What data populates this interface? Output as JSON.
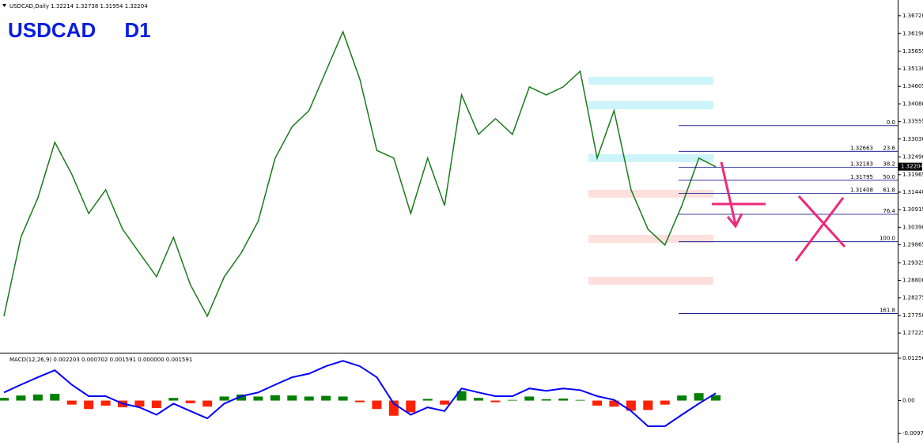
{
  "header": "USDCAD,Daily 1.32214 1.32738 1.31954 1.32204",
  "chart_data": [
    {
      "type": "line",
      "title": "USDCAD     D1",
      "color": "#1a7a1a",
      "values": [
        1.2773,
        1.3009,
        1.3127,
        1.3293,
        1.3198,
        1.308,
        1.3151,
        1.3033,
        1.2962,
        1.2891,
        1.3009,
        1.2867,
        1.2773,
        1.2891,
        1.2962,
        1.3057,
        1.3246,
        1.334,
        1.3388,
        1.3506,
        1.3624,
        1.3482,
        1.3269,
        1.3246,
        1.308,
        1.3246,
        1.3104,
        1.3435,
        1.3317,
        1.3364,
        1.3317,
        1.3459,
        1.3435,
        1.3459,
        1.3506,
        1.3246,
        1.3388,
        1.3151,
        1.3033,
        1.2986,
        1.3104,
        1.3246,
        1.322
      ],
      "ylim": [
        1.2666,
        1.3719
      ],
      "yticks": [
        {
          "value": 1.3672,
          "label": "1.36720"
        },
        {
          "value": 1.3619,
          "label": "1.36190"
        },
        1.35655,
        {
          "value": 1.3513,
          "label": "1.35130"
        },
        1.34605,
        {
          "value": 1.3408,
          "label": "1.34080"
        },
        1.33555,
        {
          "value": 1.3303,
          "label": "1.33030"
        },
        {
          "value": 1.3249,
          "label": "1.32490"
        },
        1.31965,
        {
          "value": 1.3144,
          "label": "1.31440"
        },
        1.30915,
        {
          "value": 1.3039,
          "label": "1.30390"
        },
        1.29865,
        1.29325,
        {
          "value": 1.288,
          "label": "1.28800"
        },
        1.28275,
        {
          "value": 1.2775,
          "label": "1.27750"
        },
        1.27225
      ],
      "last_price": 1.32204,
      "fibonacci": {
        "color": "#00008b",
        "levels": [
          {
            "ratio": {
              "value": 0,
              "label": "0.0"
            },
            "price": 1.33432
          },
          {
            "ratio": 23.6,
            "price": 1.32663,
            "price_label": "1.32663"
          },
          {
            "ratio": 38.2,
            "price": 1.32183,
            "price_label": "1.32183"
          },
          {
            "ratio": {
              "value": 50,
              "label": "50.0"
            },
            "price": 1.31795,
            "price_label": "1.31795"
          },
          {
            "ratio": 61.8,
            "price": 1.31408,
            "price_label": "1.31408"
          },
          {
            "ratio": 76.4,
            "price": 1.30777
          },
          {
            "ratio": {
              "value": 100,
              "label": "100.0"
            },
            "price": 1.29957
          },
          {
            "ratio": 161.8,
            "price": 1.27809
          }
        ]
      }
    },
    {
      "type": "macd",
      "title": "MACD(12,26,9) 0.002203 0.000702 0.001591 0.000000 0.001591",
      "macd": [
        0.0024,
        0.0047,
        0.0069,
        0.009,
        0.0047,
        0.0013,
        0.0013,
        -0.0009,
        -0.002,
        -0.0042,
        -0.0009,
        -0.0031,
        -0.0053,
        -0.0009,
        0.0013,
        0.0024,
        0.0047,
        0.0069,
        0.008,
        0.0102,
        0.0118,
        0.0102,
        0.0069,
        -0.0009,
        -0.0042,
        -0.002,
        -0.0031,
        0.0036,
        0.0024,
        0.0013,
        0.0013,
        0.0036,
        0.0029,
        0.0036,
        0.0031,
        0.0013,
        0.0002,
        -0.0031,
        -0.0076,
        -0.0076,
        -0.0042,
        -0.0009,
        0.0022
      ],
      "histogram": [
        0.0008,
        0.0015,
        0.0018,
        0.002,
        -0.0012,
        -0.0025,
        -0.0015,
        -0.002,
        -0.0018,
        -0.0022,
        0.0008,
        -0.0008,
        -0.0018,
        0.0012,
        0.0018,
        0.0012,
        0.0016,
        0.0015,
        0.0012,
        0.0014,
        0.0012,
        -0.0005,
        -0.0025,
        -0.0045,
        -0.0035,
        0.0005,
        -0.0012,
        0.0028,
        0.0008,
        -0.0005,
        0.0002,
        0.0012,
        0.0004,
        0.0006,
        0.0002,
        -0.0015,
        -0.0018,
        -0.003,
        -0.0028,
        -0.0012,
        0.0015,
        0.0022,
        0.0016
      ],
      "macd_color": "#0000ff",
      "histogram_colors": {
        "positive": "#008000",
        "negative": "#ff2200"
      },
      "ylim": [
        -0.0116,
        0.0128
      ],
      "yticks": [
        0.012565,
        {
          "value": 0,
          "label": "0.00"
        },
        -0.00976
      ]
    }
  ]
}
